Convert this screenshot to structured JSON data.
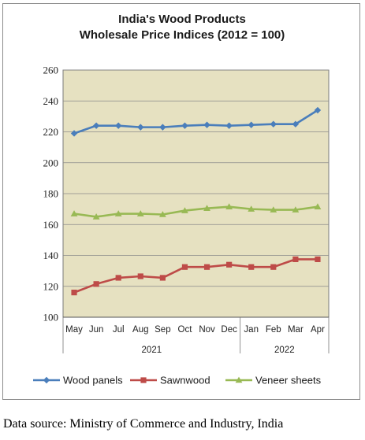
{
  "chart_data": {
    "type": "line",
    "title_line1": "India's Wood Products",
    "title_line2": "Wholesale Price Indices (2012 = 100)",
    "categories": [
      "May",
      "Jun",
      "Jul",
      "Aug",
      "Sep",
      "Oct",
      "Nov",
      "Dec",
      "Jan",
      "Feb",
      "Mar",
      "Apr"
    ],
    "year_groups": [
      {
        "label": "2021",
        "start": 0,
        "end": 7
      },
      {
        "label": "2022",
        "start": 8,
        "end": 11
      }
    ],
    "yticks": [
      100,
      120,
      140,
      160,
      180,
      200,
      220,
      240,
      260
    ],
    "ylim": [
      100,
      260
    ],
    "grid": "horizontal",
    "legend_position": "bottom",
    "series": [
      {
        "name": "Wood panels",
        "color": "#4a7ebb",
        "marker": "diamond",
        "values": [
          219,
          224,
          224,
          223,
          223,
          224,
          224.5,
          224,
          224.5,
          225,
          225,
          234
        ]
      },
      {
        "name": "Sawnwood",
        "color": "#be4b48",
        "marker": "square",
        "values": [
          116,
          121.5,
          125.5,
          126.5,
          125.5,
          132.5,
          132.5,
          134,
          132.5,
          132.5,
          137.5,
          137.5
        ]
      },
      {
        "name": "Veneer sheets",
        "color": "#98b954",
        "marker": "triangle",
        "values": [
          167,
          165,
          167,
          167,
          166.5,
          169,
          170.5,
          171.5,
          170,
          169.5,
          169.5,
          171.5
        ]
      }
    ]
  },
  "source_text": "Data source: Ministry of Commerce and Industry, India",
  "colors": {
    "plot_bg": "#e6e1c1",
    "grid": "#8a8a8a"
  }
}
